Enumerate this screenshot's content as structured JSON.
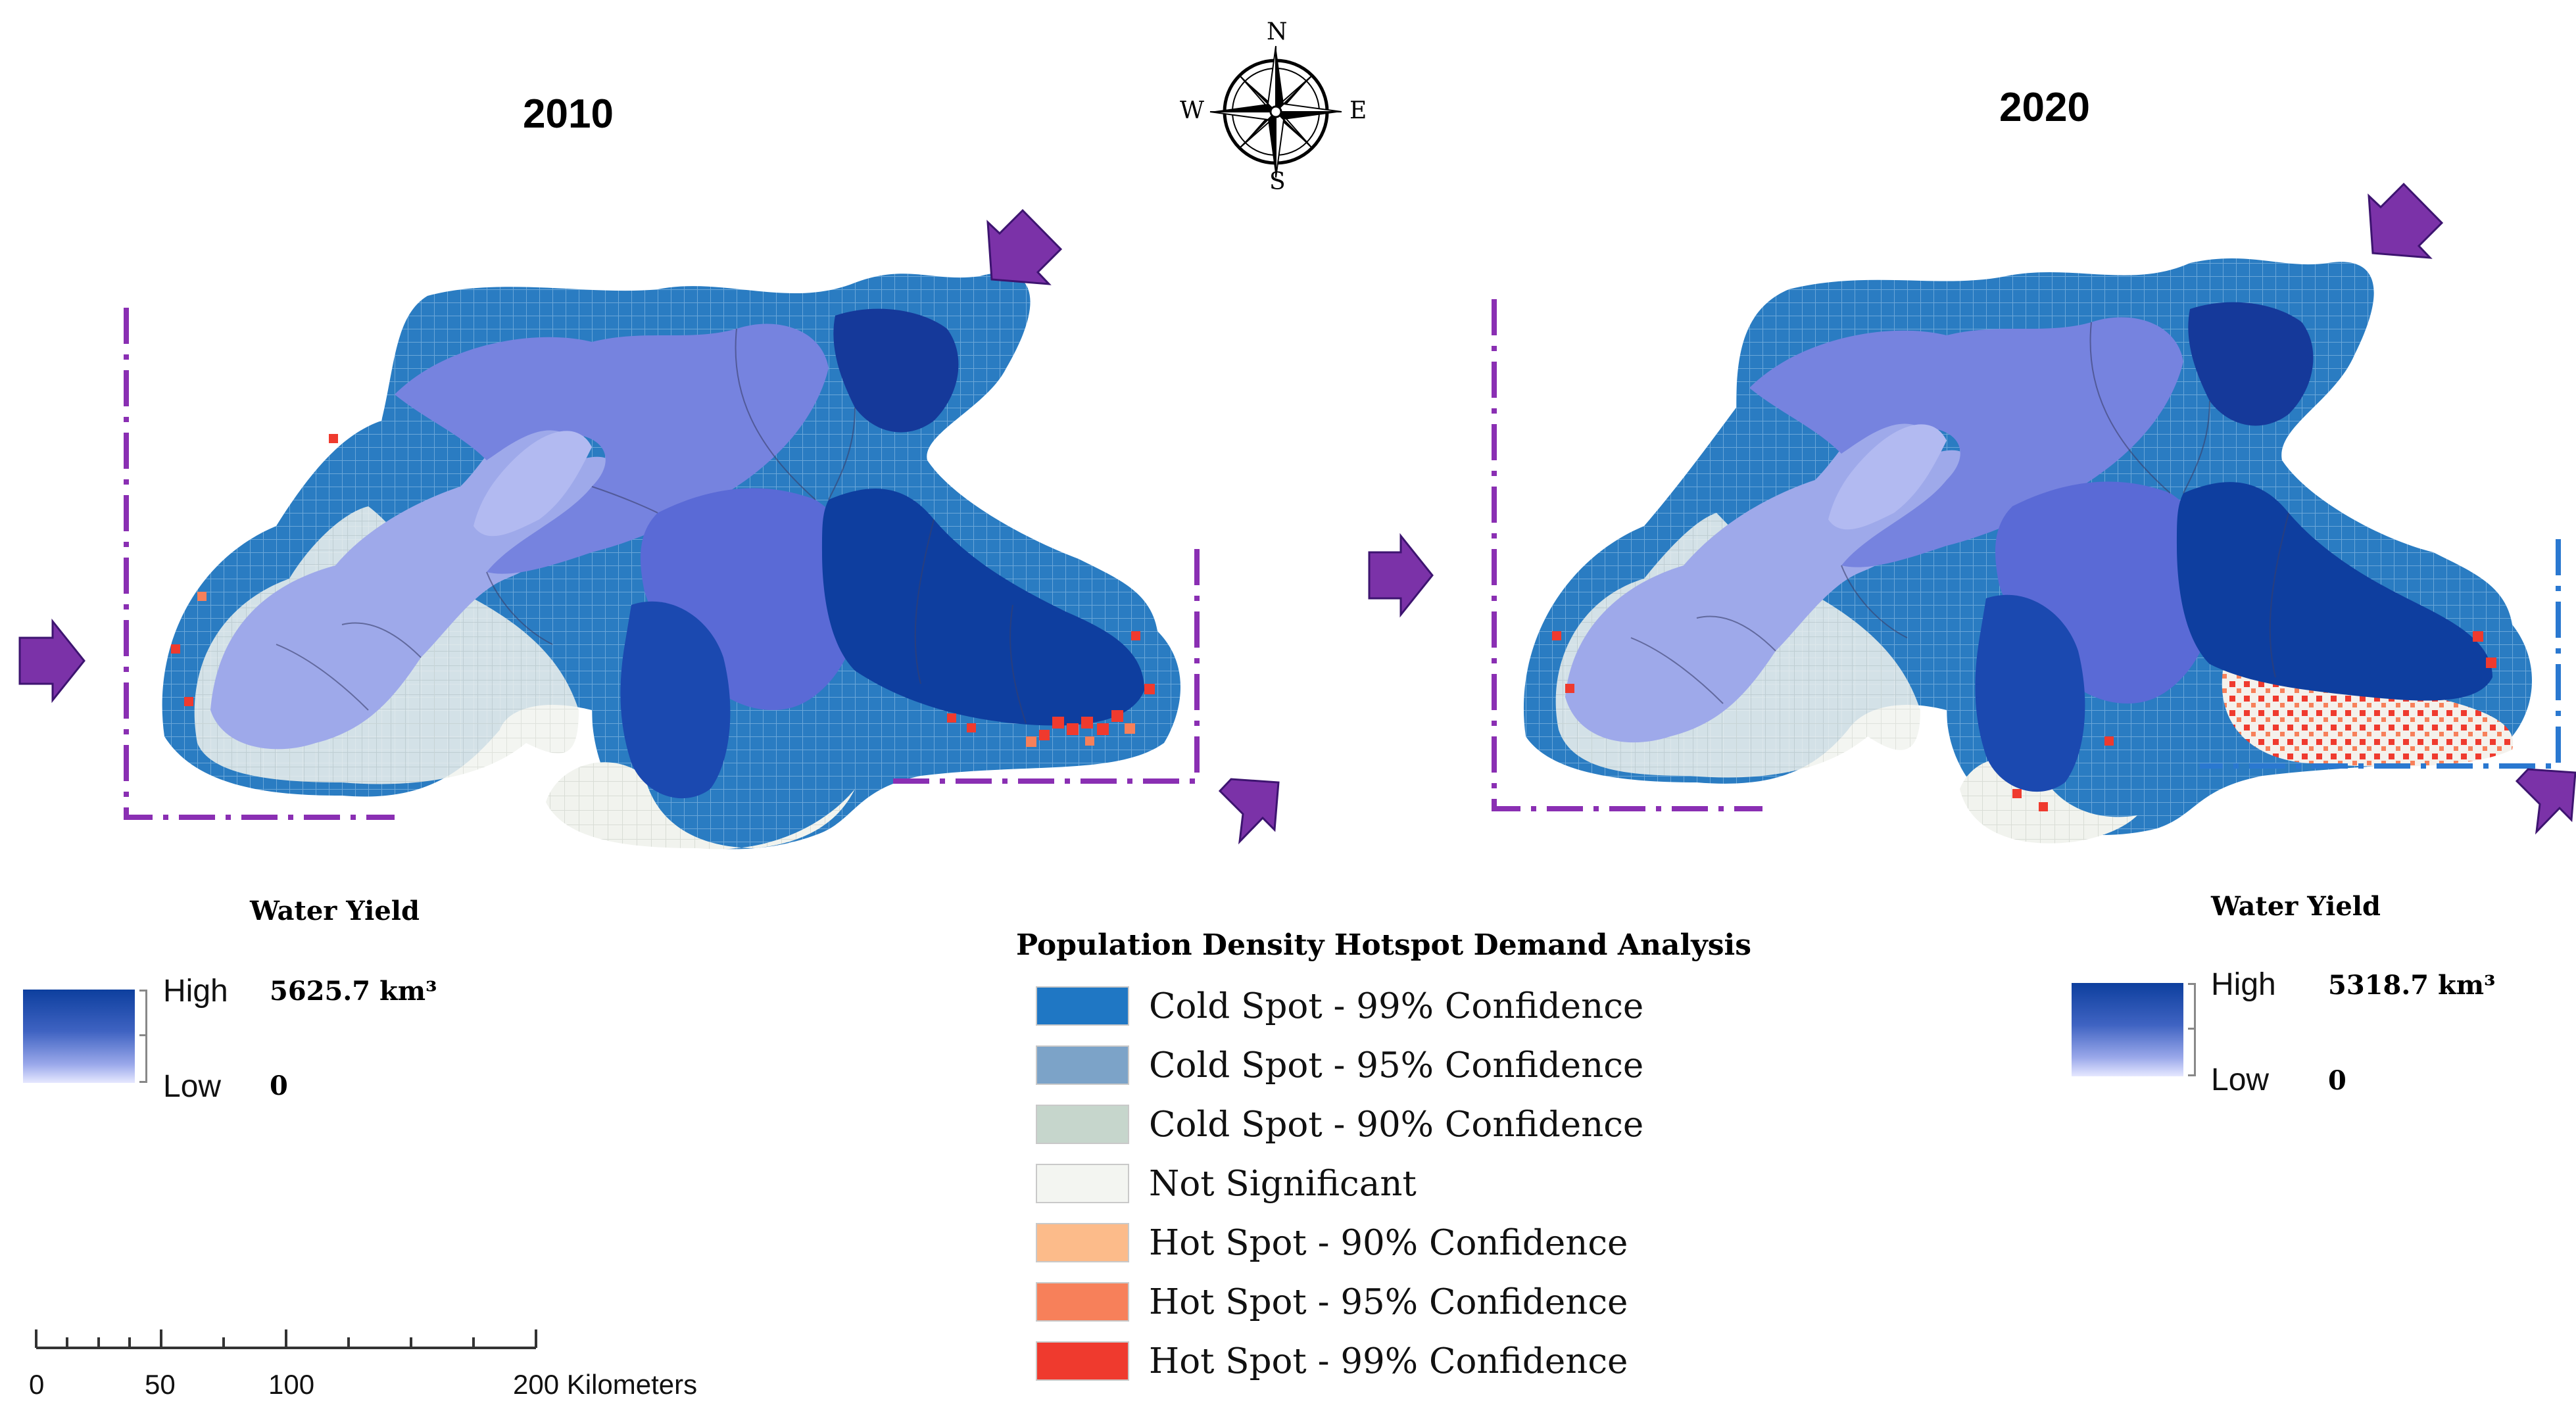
{
  "maps": {
    "left_year": "2010",
    "right_year": "2020"
  },
  "compass": {
    "n": "N",
    "s": "S",
    "e": "E",
    "w": "W"
  },
  "water_yield_left": {
    "title": "Water Yield",
    "high_label": "High",
    "high_value": "5625.7 km³",
    "low_label": "Low",
    "low_value": "0"
  },
  "water_yield_right": {
    "title": "Water Yield",
    "high_label": "High",
    "high_value": "5318.7 km³",
    "low_label": "Low",
    "low_value": "0"
  },
  "hotspot_legend": {
    "title": "Population Density Hotspot Demand Analysis",
    "items": [
      {
        "label": "Cold Spot - 99% Confidence",
        "color": "#1f77c4"
      },
      {
        "label": "Cold Spot - 95% Confidence",
        "color": "#7ca3c8"
      },
      {
        "label": "Cold Spot - 90% Confidence",
        "color": "#c6d6cc"
      },
      {
        "label": "Not Significant",
        "color": "#f3f5f1"
      },
      {
        "label": "Hot Spot - 90% Confidence",
        "color": "#fcbb8a"
      },
      {
        "label": "Hot Spot - 95% Confidence",
        "color": "#f7805a"
      },
      {
        "label": "Hot Spot - 99% Confidence",
        "color": "#ef3a2e"
      }
    ]
  },
  "scale_bar": {
    "labels": [
      "0",
      "50",
      "100",
      "200 Kilometers"
    ]
  },
  "colors": {
    "water_yield_high": "#0d3f9e",
    "water_yield_low": "#e6e8ff",
    "arrow_purple": "#7b32a8",
    "bracket_purple": "#8a2fb3",
    "bracket_blue": "#2a78d0"
  }
}
